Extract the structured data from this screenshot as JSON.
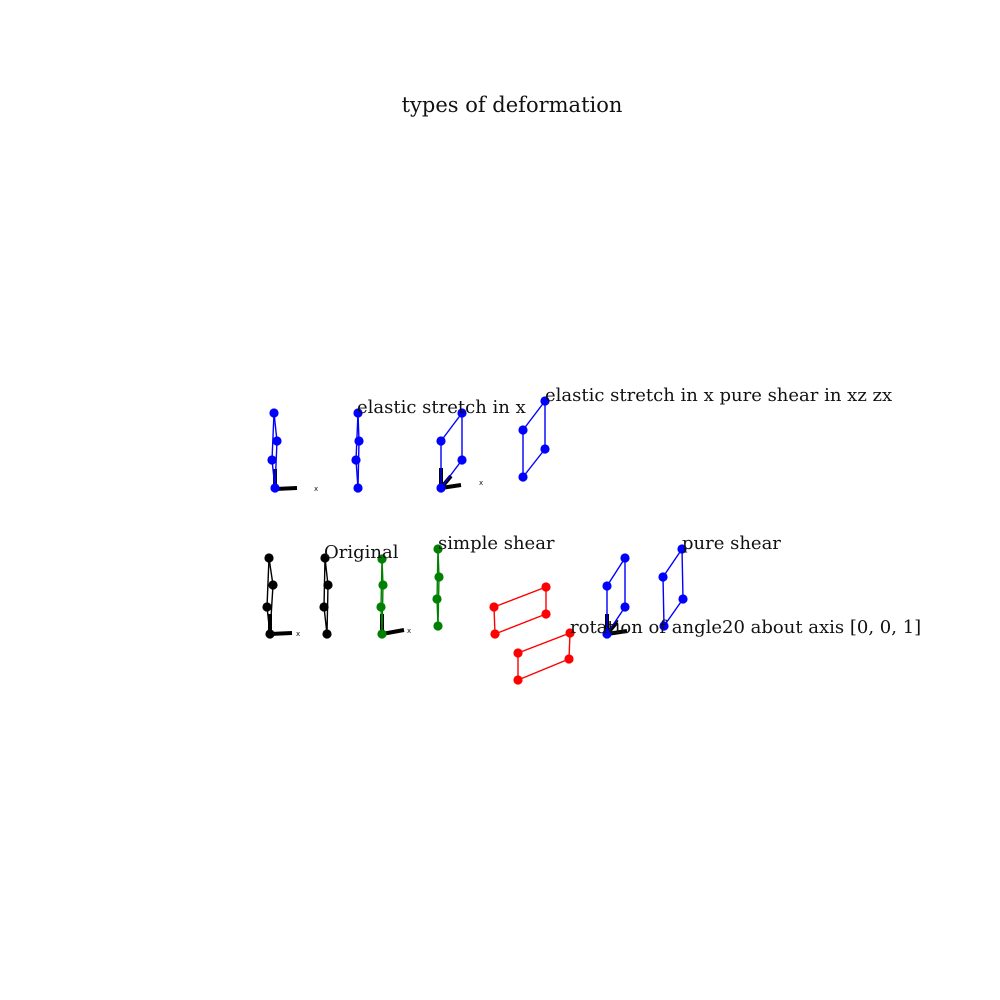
{
  "title": "types of deformation",
  "colors": {
    "original": "#000000",
    "stretch": "#0000ff",
    "simple_shear": "#008000",
    "rotation": "#ff0000",
    "pure_shear": "#0000ff"
  },
  "panels": [
    {
      "id": "original",
      "label": "Original",
      "color": "original",
      "axis_tick": "x"
    },
    {
      "id": "elastic-stretch-x",
      "label": "elastic stretch in x",
      "color": "stretch",
      "axis_tick": "x"
    },
    {
      "id": "elastic-stretch-pure-shear",
      "label": "elastic stretch in x pure shear in xz zx",
      "color": "stretch",
      "axis_tick": "x"
    },
    {
      "id": "simple-shear",
      "label": "simple shear",
      "color": "simple_shear",
      "axis_tick": "x"
    },
    {
      "id": "rotation",
      "label": "rotation of angle20 about axis [0, 0, 1]",
      "color": "rotation",
      "axis_tick": ""
    },
    {
      "id": "pure-shear",
      "label": "pure shear",
      "color": "pure_shear",
      "axis_tick": "x"
    }
  ]
}
